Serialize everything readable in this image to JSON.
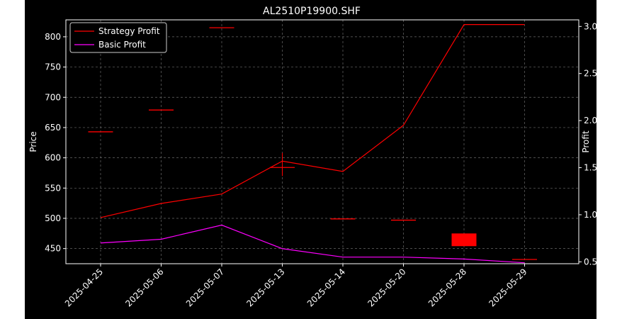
{
  "chart_data": {
    "type": "line",
    "title": "AL2510P19900.SHF",
    "xlabel": "",
    "ylabel": "Price",
    "y2label": "Profit",
    "categories": [
      "2025-04-25",
      "2025-05-06",
      "2025-05-07",
      "2025-05-13",
      "2025-05-14",
      "2025-05-20",
      "2025-05-28",
      "2025-05-29"
    ],
    "ylim": [
      425,
      828
    ],
    "y_ticks": [
      450,
      500,
      550,
      600,
      650,
      700,
      750,
      800
    ],
    "y2lim": [
      0.48,
      3.07
    ],
    "y2_ticks": [
      0.5,
      1.0,
      1.5,
      2.0,
      2.5,
      3.0
    ],
    "grid": true,
    "legend_placement": "top-left",
    "candles": [
      {
        "date": "2025-04-25",
        "open": 643,
        "close": 643,
        "high": 643,
        "low": 643,
        "color": "#ff0000"
      },
      {
        "date": "2025-05-06",
        "open": 679,
        "close": 679,
        "high": 679,
        "low": 679,
        "color": "#ff0000"
      },
      {
        "date": "2025-05-07",
        "open": 815,
        "close": 815,
        "high": 815,
        "low": 815,
        "color": "#ff0000"
      },
      {
        "date": "2025-05-13",
        "open": 584,
        "close": 584,
        "high": 608,
        "low": 570,
        "color": "#ff0000"
      },
      {
        "date": "2025-05-14",
        "open": 499,
        "close": 499,
        "high": 499,
        "low": 499,
        "color": "#ff0000"
      },
      {
        "date": "2025-05-20",
        "open": 497,
        "close": 497,
        "high": 497,
        "low": 497,
        "color": "#ff0000"
      },
      {
        "date": "2025-05-28",
        "open": 454,
        "close": 475,
        "high": 475,
        "low": 454,
        "color": "#ff0000"
      },
      {
        "date": "2025-05-29",
        "open": 432,
        "close": 432,
        "high": 432,
        "low": 432,
        "color": "#ff0000"
      }
    ],
    "series": [
      {
        "name": "Strategy Profit",
        "axis": "right",
        "color": "#ff0000",
        "values": [
          0.97,
          1.12,
          1.22,
          1.57,
          1.46,
          1.95,
          3.02,
          3.02
        ]
      },
      {
        "name": "Basic Profit",
        "axis": "right",
        "color": "#ff00ff",
        "values": [
          0.7,
          0.74,
          0.89,
          0.64,
          0.55,
          0.55,
          0.53,
          0.49
        ]
      }
    ]
  }
}
